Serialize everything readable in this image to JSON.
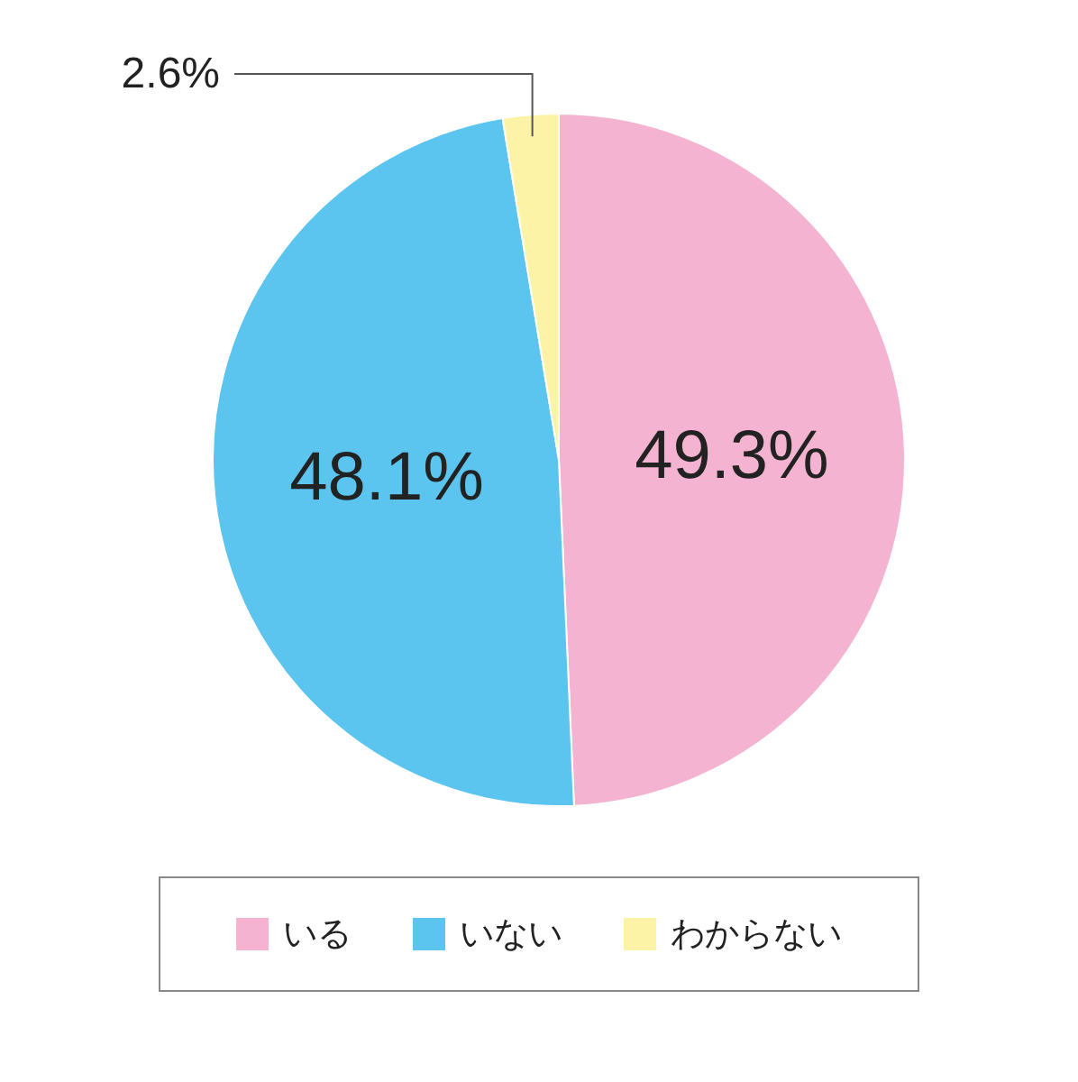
{
  "chart_data": {
    "type": "pie",
    "categories": [
      "いる",
      "いない",
      "わからない"
    ],
    "values": [
      49.3,
      48.1,
      2.6
    ],
    "colors": [
      "#f4b3d0",
      "#5bc4ef",
      "#fdf3a7"
    ],
    "value_labels": [
      "49.3%",
      "48.1%",
      "2.6%"
    ],
    "legend": "bottom"
  }
}
